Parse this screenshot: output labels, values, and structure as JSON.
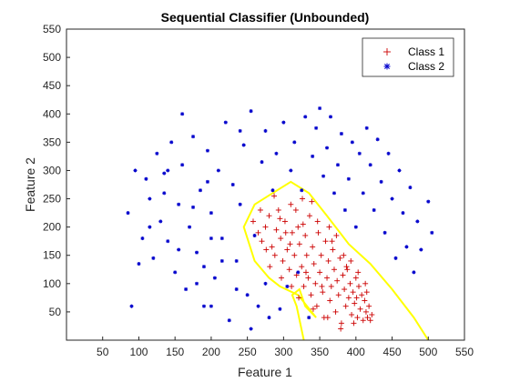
{
  "chart_data": {
    "type": "scatter",
    "title": "Sequential Classifier (Unbounded)",
    "xlabel": "Feature 1",
    "ylabel": "Feature 2",
    "xlim": [
      0,
      550
    ],
    "ylim": [
      0,
      550
    ],
    "xticks": [
      50,
      100,
      150,
      200,
      250,
      300,
      350,
      400,
      450,
      500,
      550
    ],
    "yticks": [
      50,
      100,
      150,
      200,
      250,
      300,
      350,
      400,
      450,
      500,
      550
    ],
    "grid": false,
    "legend_position": "top-right",
    "series": [
      {
        "name": "Class 1",
        "marker": "+",
        "color": "#cc0000",
        "points": [
          [
            258,
            210
          ],
          [
            265,
            190
          ],
          [
            270,
            175
          ],
          [
            275,
            200
          ],
          [
            280,
            220
          ],
          [
            284,
            165
          ],
          [
            288,
            150
          ],
          [
            290,
            195
          ],
          [
            293,
            230
          ],
          [
            296,
            180
          ],
          [
            299,
            140
          ],
          [
            302,
            210
          ],
          [
            305,
            160
          ],
          [
            308,
            125
          ],
          [
            310,
            240
          ],
          [
            312,
            190
          ],
          [
            315,
            150
          ],
          [
            318,
            115
          ],
          [
            320,
            200
          ],
          [
            322,
            170
          ],
          [
            325,
            130
          ],
          [
            326,
            250
          ],
          [
            328,
            95
          ],
          [
            330,
            185
          ],
          [
            332,
            150
          ],
          [
            334,
            110
          ],
          [
            336,
            220
          ],
          [
            338,
            80
          ],
          [
            340,
            165
          ],
          [
            342,
            135
          ],
          [
            344,
            100
          ],
          [
            346,
            60
          ],
          [
            348,
            190
          ],
          [
            350,
            120
          ],
          [
            352,
            150
          ],
          [
            354,
            85
          ],
          [
            356,
            40
          ],
          [
            358,
            175
          ],
          [
            360,
            110
          ],
          [
            362,
            140
          ],
          [
            364,
            70
          ],
          [
            366,
            95
          ],
          [
            368,
            160
          ],
          [
            370,
            125
          ],
          [
            372,
            50
          ],
          [
            374,
            105
          ],
          [
            376,
            80
          ],
          [
            378,
            145
          ],
          [
            380,
            30
          ],
          [
            382,
            115
          ],
          [
            384,
            90
          ],
          [
            386,
            60
          ],
          [
            388,
            125
          ],
          [
            390,
            75
          ],
          [
            392,
            100
          ],
          [
            394,
            45
          ],
          [
            396,
            85
          ],
          [
            398,
            65
          ],
          [
            400,
            110
          ],
          [
            402,
            40
          ],
          [
            404,
            95
          ],
          [
            406,
            55
          ],
          [
            408,
            80
          ],
          [
            410,
            35
          ],
          [
            412,
            70
          ],
          [
            414,
            50
          ],
          [
            416,
            40
          ],
          [
            418,
            60
          ],
          [
            420,
            35
          ],
          [
            422,
            45
          ],
          [
            287,
            255
          ],
          [
            295,
            215
          ],
          [
            303,
            190
          ],
          [
            317,
            230
          ],
          [
            327,
            205
          ],
          [
            339,
            245
          ],
          [
            347,
            210
          ],
          [
            363,
            200
          ],
          [
            373,
            185
          ],
          [
            383,
            150
          ],
          [
            393,
            140
          ],
          [
            403,
            120
          ],
          [
            413,
            100
          ],
          [
            281,
            130
          ],
          [
            297,
            110
          ],
          [
            311,
            95
          ],
          [
            321,
            75
          ],
          [
            341,
            55
          ],
          [
            361,
            40
          ],
          [
            379,
            20
          ],
          [
            397,
            30
          ],
          [
            268,
            230
          ],
          [
            276,
            160
          ],
          [
            309,
            170
          ],
          [
            331,
            120
          ],
          [
            353,
            95
          ],
          [
            367,
            175
          ],
          [
            387,
            130
          ],
          [
            401,
            75
          ],
          [
            415,
            85
          ]
        ]
      },
      {
        "name": "Class 2",
        "marker": "*",
        "color": "#0000cc",
        "points": [
          [
            85,
            225
          ],
          [
            90,
            60
          ],
          [
            100,
            135
          ],
          [
            105,
            180
          ],
          [
            110,
            285
          ],
          [
            115,
            250
          ],
          [
            120,
            145
          ],
          [
            125,
            330
          ],
          [
            130,
            210
          ],
          [
            135,
            295
          ],
          [
            140,
            175
          ],
          [
            145,
            350
          ],
          [
            150,
            120
          ],
          [
            155,
            240
          ],
          [
            160,
            310
          ],
          [
            165,
            90
          ],
          [
            170,
            200
          ],
          [
            175,
            360
          ],
          [
            180,
            155
          ],
          [
            185,
            265
          ],
          [
            190,
            60
          ],
          [
            195,
            335
          ],
          [
            200,
            225
          ],
          [
            205,
            110
          ],
          [
            210,
            300
          ],
          [
            215,
            180
          ],
          [
            220,
            385
          ],
          [
            225,
            35
          ],
          [
            230,
            275
          ],
          [
            235,
            140
          ],
          [
            240,
            240
          ],
          [
            245,
            345
          ],
          [
            250,
            80
          ],
          [
            255,
            405
          ],
          [
            260,
            185
          ],
          [
            265,
            60
          ],
          [
            270,
            315
          ],
          [
            275,
            370
          ],
          [
            280,
            40
          ],
          [
            285,
            265
          ],
          [
            290,
            330
          ],
          [
            295,
            55
          ],
          [
            300,
            385
          ],
          [
            305,
            95
          ],
          [
            310,
            300
          ],
          [
            315,
            350
          ],
          [
            320,
            120
          ],
          [
            325,
            265
          ],
          [
            330,
            395
          ],
          [
            335,
            40
          ],
          [
            340,
            325
          ],
          [
            345,
            375
          ],
          [
            350,
            410
          ],
          [
            355,
            290
          ],
          [
            360,
            340
          ],
          [
            365,
            395
          ],
          [
            370,
            260
          ],
          [
            375,
            310
          ],
          [
            380,
            365
          ],
          [
            385,
            230
          ],
          [
            390,
            285
          ],
          [
            395,
            350
          ],
          [
            400,
            200
          ],
          [
            405,
            330
          ],
          [
            410,
            260
          ],
          [
            415,
            375
          ],
          [
            420,
            310
          ],
          [
            425,
            230
          ],
          [
            430,
            355
          ],
          [
            435,
            280
          ],
          [
            440,
            190
          ],
          [
            445,
            330
          ],
          [
            450,
            250
          ],
          [
            455,
            145
          ],
          [
            460,
            300
          ],
          [
            465,
            225
          ],
          [
            470,
            165
          ],
          [
            475,
            270
          ],
          [
            480,
            120
          ],
          [
            485,
            210
          ],
          [
            490,
            160
          ],
          [
            500,
            245
          ],
          [
            505,
            190
          ],
          [
            95,
            300
          ],
          [
            115,
            200
          ],
          [
            135,
            260
          ],
          [
            155,
            160
          ],
          [
            175,
            235
          ],
          [
            195,
            280
          ],
          [
            215,
            140
          ],
          [
            235,
            90
          ],
          [
            255,
            20
          ],
          [
            275,
            100
          ],
          [
            180,
            100
          ],
          [
            200,
            60
          ],
          [
            160,
            400
          ],
          [
            240,
            370
          ],
          [
            200,
            180
          ],
          [
            140,
            300
          ],
          [
            190,
            130
          ]
        ]
      }
    ],
    "boundary_line": {
      "color": "#ffff00",
      "points": [
        [
          328,
          0
        ],
        [
          318,
          60
        ],
        [
          312,
          80
        ],
        [
          322,
          90
        ],
        [
          330,
          60
        ],
        [
          345,
          40
        ],
        [
          320,
          80
        ],
        [
          295,
          95
        ],
        [
          280,
          110
        ],
        [
          260,
          140
        ],
        [
          245,
          200
        ],
        [
          260,
          240
        ],
        [
          285,
          260
        ],
        [
          310,
          280
        ],
        [
          335,
          260
        ],
        [
          360,
          220
        ],
        [
          390,
          170
        ],
        [
          420,
          135
        ],
        [
          450,
          90
        ],
        [
          480,
          40
        ],
        [
          500,
          0
        ]
      ]
    }
  }
}
